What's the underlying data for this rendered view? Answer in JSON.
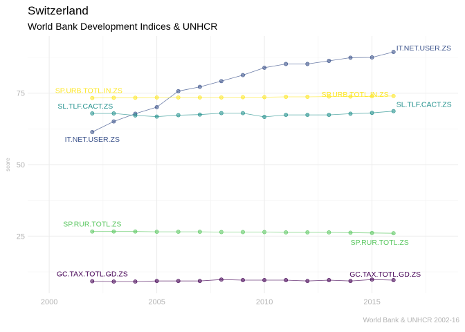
{
  "title": "Switzerland",
  "subtitle": "World Bank Development Indices & UNHCR",
  "caption": "World Bank & UNHCR 2002-16",
  "chart_data": {
    "type": "line",
    "title": "Switzerland",
    "subtitle": "World Bank Development Indices & UNHCR",
    "xlabel": "",
    "ylabel": "score",
    "xlim": [
      1999,
      2019
    ],
    "ylim": [
      5,
      95
    ],
    "xticks": [
      2000,
      2005,
      2010,
      2015
    ],
    "yticks": [
      25,
      50,
      75
    ],
    "x": [
      2002,
      2003,
      2004,
      2005,
      2006,
      2007,
      2008,
      2009,
      2010,
      2011,
      2012,
      2013,
      2014,
      2015,
      2016
    ],
    "series": [
      {
        "name": "IT.NET.USER.ZS",
        "color": "#3B528B",
        "values": [
          61.4,
          65.1,
          67.8,
          70.1,
          75.7,
          77.2,
          79.2,
          81.3,
          83.9,
          85.2,
          85.2,
          86.3,
          87.4,
          87.5,
          89.4
        ],
        "label_start": "IT.NET.USER.ZS",
        "label_end": "IT.NET.USER.ZS"
      },
      {
        "name": "SP.URB.TOTL.IN.ZS",
        "color": "#FDE725",
        "values": [
          73.3,
          73.4,
          73.4,
          73.5,
          73.5,
          73.5,
          73.5,
          73.6,
          73.6,
          73.7,
          73.7,
          73.8,
          73.8,
          73.9,
          74.0
        ],
        "label_start": "SP.URB.TOTL.IN.ZS",
        "label_end": "SP.URB.TOTL.IN.ZS"
      },
      {
        "name": "SL.TLF.CACT.ZS",
        "color": "#21908C",
        "values": [
          67.9,
          67.9,
          67.2,
          66.8,
          67.3,
          67.5,
          68.0,
          68.0,
          66.7,
          67.4,
          67.4,
          67.4,
          67.8,
          68.1,
          68.7
        ],
        "label_start": "SL.TLF.CACT.ZS",
        "label_end": "SL.TLF.CACT.ZS"
      },
      {
        "name": "SP.RUR.TOTL.ZS",
        "color": "#5DC863",
        "values": [
          26.6,
          26.6,
          26.6,
          26.5,
          26.5,
          26.5,
          26.4,
          26.4,
          26.4,
          26.3,
          26.3,
          26.3,
          26.2,
          26.1,
          26.0
        ],
        "label_start": "SP.RUR.TOTL.ZS",
        "label_end": "SP.RUR.TOTL.ZS"
      },
      {
        "name": "GC.TAX.TOTL.GD.ZS",
        "color": "#440154",
        "values": [
          9.2,
          9.1,
          9.1,
          9.3,
          9.3,
          9.3,
          9.8,
          9.6,
          9.6,
          9.6,
          9.3,
          9.6,
          9.3,
          9.8,
          9.6
        ],
        "label_start": "GC.TAX.TOTL.GD.ZS",
        "label_end": "GC.TAX.TOTL.GD.ZS"
      }
    ]
  }
}
